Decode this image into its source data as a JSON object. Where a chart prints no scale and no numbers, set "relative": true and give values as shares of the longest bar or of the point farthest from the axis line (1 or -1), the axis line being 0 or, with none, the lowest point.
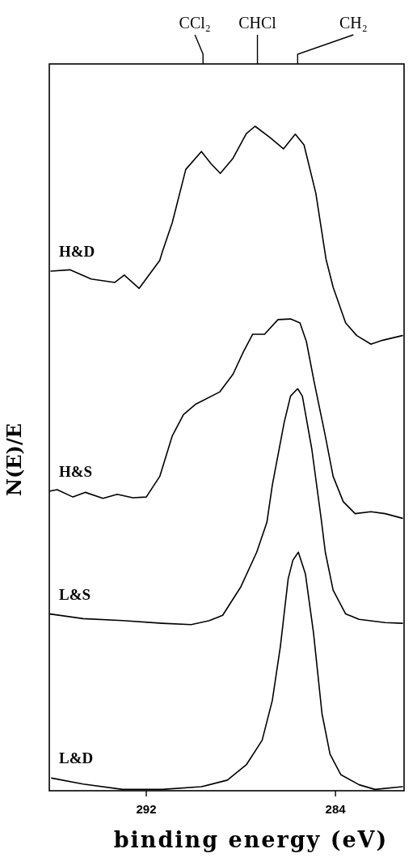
{
  "chart_data": {
    "type": "line",
    "relative": true,
    "xlabel": "binding energy (eV)",
    "ylabel": "N(E)/E",
    "xlim": [
      296.1,
      281.1
    ],
    "xticks": [
      292,
      284
    ],
    "legend": false,
    "grid": false,
    "marker": "none",
    "line_style": "solid",
    "annotations": [
      {
        "text": "CCl₂",
        "x": 289.6
      },
      {
        "text": "CHCl",
        "x": 287.3
      },
      {
        "text": "CH₂",
        "x": 285.6
      }
    ],
    "series": [
      {
        "name": "H&D",
        "color": "#000000",
        "x": [
          296.03,
          295.23,
          294.33,
          293.33,
          292.93,
          292.3,
          291.43,
          291.33,
          290.9,
          290.33,
          289.67,
          289.27,
          288.87,
          288.33,
          287.77,
          287.4,
          286.77,
          286.2,
          285.7,
          285.33,
          284.83,
          284.4,
          284.1,
          283.57,
          283.1,
          282.5,
          282.0,
          281.17
        ],
        "values": [
          0.782,
          0.784,
          0.77,
          0.765,
          0.776,
          0.756,
          0.798,
          0.81,
          0.855,
          0.935,
          0.962,
          0.944,
          0.929,
          0.952,
          0.989,
          1,
          0.983,
          0.966,
          0.988,
          0.972,
          0.899,
          0.8,
          0.758,
          0.704,
          0.685,
          0.672,
          0.678,
          0.685
        ]
      },
      {
        "name": "H&S",
        "color": "#000000",
        "x": [
          296.07,
          295.77,
          295.1,
          294.57,
          293.83,
          293.23,
          292.57,
          292.0,
          291.43,
          290.9,
          290.43,
          289.9,
          288.9,
          288.33,
          287.9,
          287.5,
          287.0,
          286.43,
          285.9,
          285.5,
          285.23,
          284.9,
          284.43,
          284.1,
          283.67,
          283.17,
          282.5,
          281.9,
          281.17
        ],
        "values": [
          0.451,
          0.453,
          0.442,
          0.449,
          0.44,
          0.446,
          0.441,
          0.442,
          0.473,
          0.534,
          0.566,
          0.582,
          0.6,
          0.627,
          0.66,
          0.687,
          0.687,
          0.709,
          0.71,
          0.704,
          0.676,
          0.615,
          0.534,
          0.473,
          0.435,
          0.417,
          0.42,
          0.417,
          0.41
        ]
      },
      {
        "name": "L&S",
        "color": "#000000",
        "x": [
          296.07,
          294.67,
          293.0,
          291.33,
          290.1,
          289.33,
          288.77,
          288.0,
          287.33,
          286.9,
          286.67,
          286.17,
          285.9,
          285.6,
          285.4,
          285.0,
          284.6,
          284.43,
          284.1,
          283.57,
          283.0,
          281.9,
          281.17
        ],
        "values": [
          0.266,
          0.259,
          0.256,
          0.252,
          0.25,
          0.256,
          0.264,
          0.307,
          0.359,
          0.404,
          0.46,
          0.554,
          0.594,
          0.605,
          0.594,
          0.514,
          0.408,
          0.359,
          0.302,
          0.266,
          0.258,
          0.253,
          0.252
        ]
      },
      {
        "name": "L&D",
        "color": "#000000",
        "x": [
          296.0,
          294.67,
          293.0,
          291.33,
          289.67,
          288.57,
          287.77,
          287.1,
          286.67,
          286.33,
          286.0,
          285.8,
          285.57,
          285.27,
          284.93,
          284.57,
          284.23,
          283.77,
          283.0,
          282.33,
          281.17
        ],
        "values": [
          0.019,
          0.01,
          0.002,
          0.002,
          0.006,
          0.016,
          0.039,
          0.076,
          0.136,
          0.217,
          0.319,
          0.347,
          0.359,
          0.326,
          0.238,
          0.116,
          0.055,
          0.024,
          0.009,
          0.002,
          0.006
        ]
      }
    ]
  }
}
